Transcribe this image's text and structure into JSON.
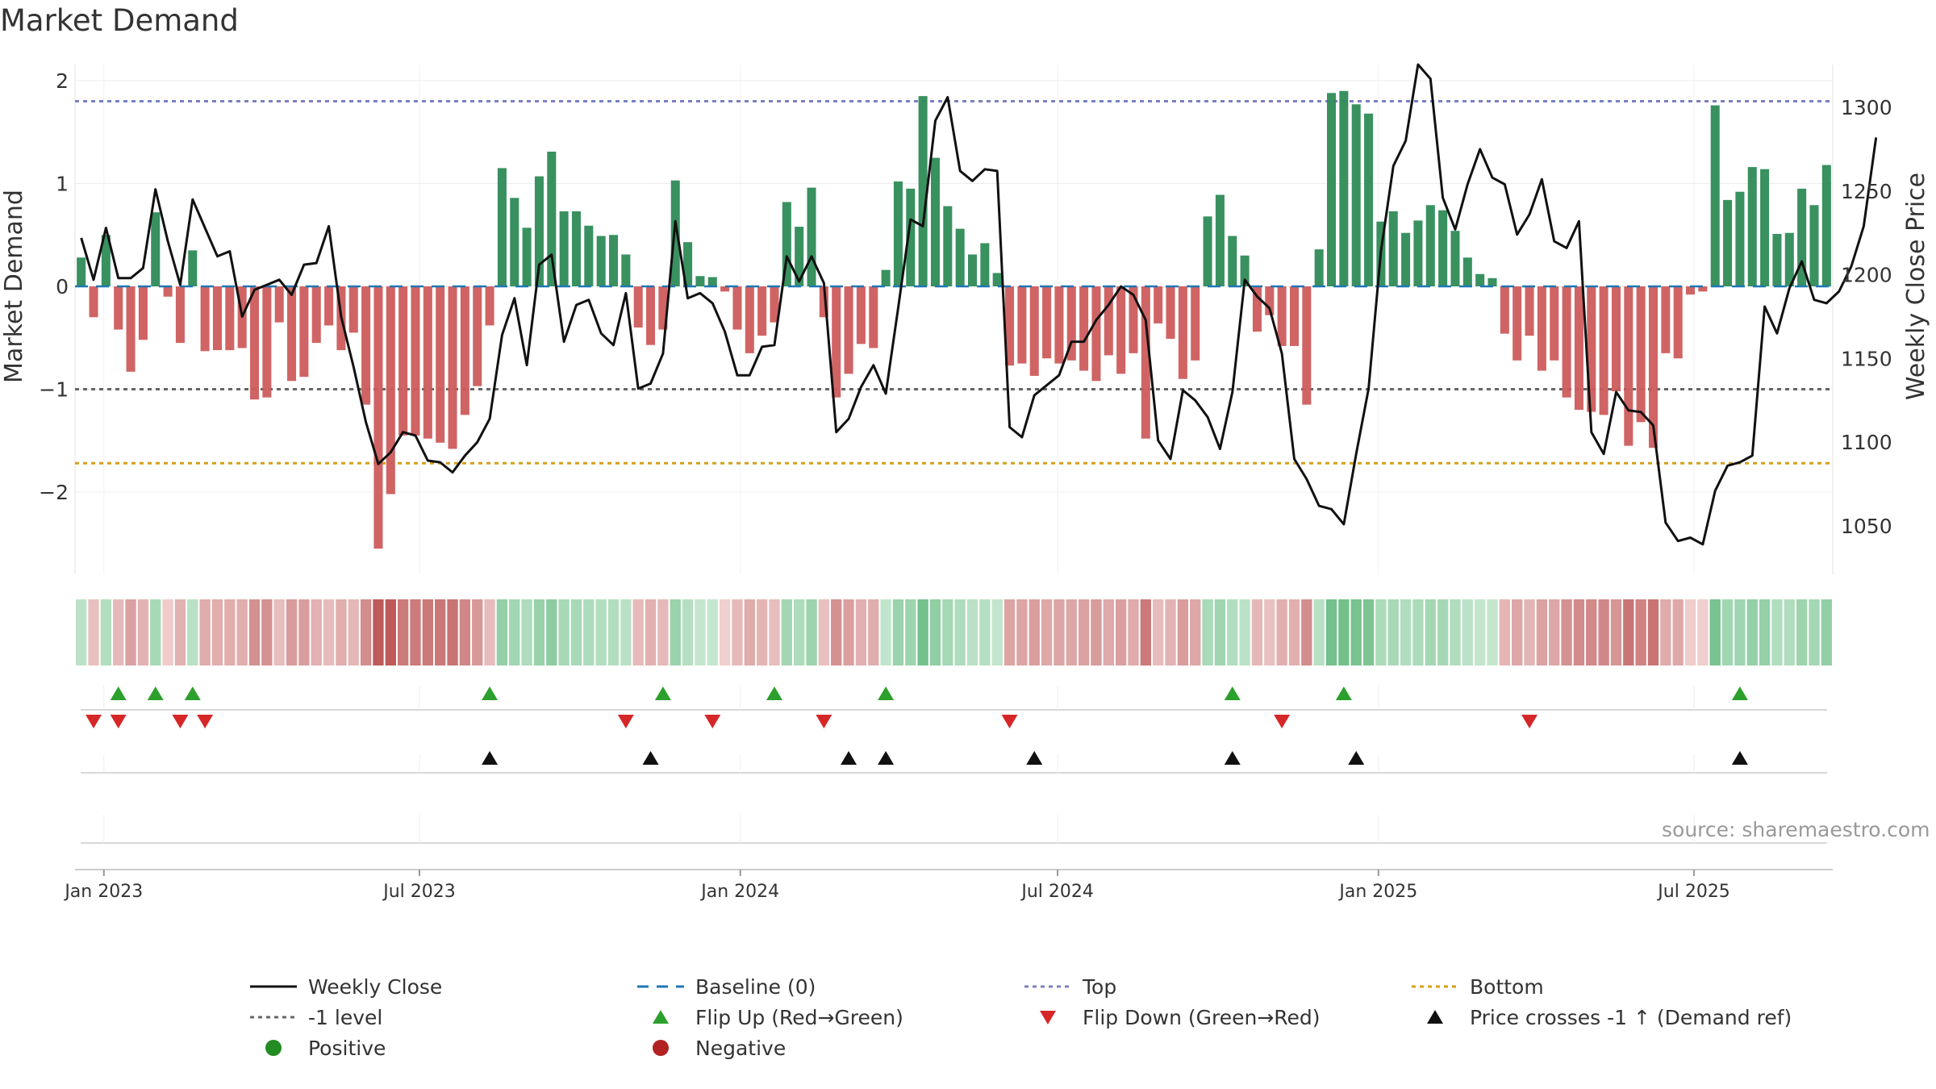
{
  "title": "Market Demand",
  "source_note": "source: sharemaestro.com",
  "colors": {
    "positive_bar": "#2e8b57",
    "negative_bar": "#cd5c5c",
    "close_line": "#111111",
    "baseline": "#1f77b4",
    "top_line": "#7b7fc4",
    "level_line": "#666666",
    "bottom_line": "#d4a017",
    "flip_up": "#2ca02c",
    "flip_down": "#d62728",
    "cross_marker": "#111111"
  },
  "chart_data": {
    "type": "bar",
    "title": "Market Demand",
    "ylabel": "Market Demand",
    "y2label": "Weekly Close Price",
    "ylim": [
      -2.8,
      2.15
    ],
    "y2lim": [
      1030,
      1315
    ],
    "yticks": [
      2,
      1,
      0,
      -1,
      -2
    ],
    "ytick_labels": [
      "2",
      "1",
      "0",
      "−1",
      "−2"
    ],
    "y2ticks": [
      1300,
      1250,
      1200,
      1150,
      1100,
      1050
    ],
    "y2tick_labels": [
      "1300",
      "1250",
      "1200",
      "1150",
      "1100",
      "1050"
    ],
    "reference_lines": {
      "top": 1.8,
      "level": -1,
      "bottom": -1.72,
      "baseline": 0
    },
    "x_start": "2022-12-19",
    "x_end": "2025-09-15",
    "xticks": [
      "2023-01-01",
      "2023-07-01",
      "2024-01-01",
      "2024-07-01",
      "2025-01-01",
      "2025-07-01"
    ],
    "xtick_labels": [
      "Jan 2023",
      "Jul 2023",
      "Jan 2024",
      "Jul 2024",
      "Jan 2025",
      "Jul 2025"
    ],
    "demand": [
      0.28,
      -0.3,
      0.5,
      -0.42,
      -0.83,
      -0.52,
      0.72,
      -0.1,
      -0.55,
      0.35,
      -0.63,
      -0.62,
      -0.62,
      -0.6,
      -1.1,
      -1.08,
      -0.35,
      -0.92,
      -0.88,
      -0.55,
      -0.38,
      -0.62,
      -0.45,
      -1.15,
      -2.55,
      -2.02,
      -1.45,
      -1.45,
      -1.48,
      -1.52,
      -1.58,
      -1.25,
      -0.97,
      -0.38,
      1.15,
      0.86,
      0.57,
      1.07,
      1.31,
      0.73,
      0.73,
      0.59,
      0.49,
      0.5,
      0.31,
      -0.4,
      -0.57,
      -0.42,
      1.03,
      0.43,
      0.1,
      0.09,
      -0.05,
      -0.42,
      -0.65,
      -0.48,
      -0.35,
      0.82,
      0.58,
      0.96,
      -0.3,
      -1.08,
      -0.85,
      -0.56,
      -0.6,
      0.16,
      1.02,
      0.95,
      1.85,
      1.25,
      0.78,
      0.56,
      0.31,
      0.42,
      0.13,
      -0.77,
      -0.75,
      -0.87,
      -0.7,
      -0.75,
      -0.72,
      -0.82,
      -0.92,
      -0.67,
      -0.85,
      -0.65,
      -1.48,
      -0.36,
      -0.51,
      -0.9,
      -0.72,
      0.68,
      0.89,
      0.49,
      0.3,
      -0.44,
      -0.28,
      -0.58,
      -0.58,
      -1.15,
      0.36,
      1.88,
      1.9,
      1.77,
      1.68,
      0.63,
      0.73,
      0.52,
      0.64,
      0.79,
      0.74,
      0.54,
      0.28,
      0.12,
      0.08,
      -0.46,
      -0.72,
      -0.48,
      -0.82,
      -0.72,
      -1.08,
      -1.2,
      -1.22,
      -1.25,
      -1.02,
      -1.55,
      -1.32,
      -1.57,
      -0.65,
      -0.7,
      -0.08,
      -0.05,
      1.76,
      0.84,
      0.92,
      1.16,
      1.14,
      0.51,
      0.52,
      0.95,
      0.79,
      1.18
    ],
    "close": [
      1222,
      1197,
      1228,
      1198,
      1198,
      1204,
      1251,
      1220,
      1194,
      1245,
      1228,
      1211,
      1214,
      1175,
      1191,
      1194,
      1197,
      1188,
      1206,
      1207,
      1229,
      1175,
      1145,
      1112,
      1087,
      1094,
      1106,
      1104,
      1089,
      1088,
      1082,
      1092,
      1100,
      1114,
      1164,
      1186,
      1146,
      1206,
      1212,
      1160,
      1182,
      1185,
      1165,
      1158,
      1189,
      1132,
      1135,
      1153,
      1232,
      1186,
      1189,
      1183,
      1166,
      1140,
      1140,
      1157,
      1158,
      1211,
      1196,
      1211,
      1195,
      1106,
      1114,
      1133,
      1146,
      1129,
      1180,
      1233,
      1229,
      1292,
      1306,
      1262,
      1256,
      1263,
      1262,
      1109,
      1103,
      1128,
      1134,
      1140,
      1160,
      1160,
      1173,
      1182,
      1193,
      1188,
      1173,
      1101,
      1090,
      1131,
      1125,
      1115,
      1096,
      1130,
      1197,
      1187,
      1180,
      1153,
      1090,
      1078,
      1062,
      1060,
      1051,
      1093,
      1132,
      1214,
      1265,
      1280,
      1334,
      1317,
      1246,
      1227,
      1254,
      1275,
      1258,
      1254,
      1224,
      1236,
      1257,
      1220,
      1216,
      1232,
      1106,
      1093,
      1130,
      1119,
      1118,
      1110,
      1052,
      1041,
      1043,
      1039,
      1071,
      1086,
      1088,
      1092,
      1181,
      1165,
      1192,
      1208,
      1185,
      1183,
      1190,
      1205,
      1229,
      1282
    ]
  },
  "markers": {
    "flip_up": [
      3,
      6,
      9,
      33,
      47,
      56,
      65,
      93,
      102,
      134
    ],
    "flip_down": [
      1,
      3,
      8,
      10,
      44,
      51,
      60,
      75,
      97,
      117
    ],
    "price_cross": [
      33,
      46,
      62,
      65,
      77,
      93,
      103,
      134
    ]
  },
  "legend": [
    {
      "label": "Weekly Close",
      "symbol": "line-solid-black"
    },
    {
      "label": "Baseline (0)",
      "symbol": "line-dash-blue"
    },
    {
      "label": "Top",
      "symbol": "line-dot-purple"
    },
    {
      "label": "Bottom",
      "symbol": "line-dot-yellow"
    },
    {
      "label": "-1 level",
      "symbol": "line-dot-gray"
    },
    {
      "label": "Flip Up (Red→Green)",
      "symbol": "triangle-up-green"
    },
    {
      "label": "Flip Down (Green→Red)",
      "symbol": "triangle-down-red"
    },
    {
      "label": "Price crosses -1 ↑ (Demand ref)",
      "symbol": "triangle-up-black"
    },
    {
      "label": "Positive",
      "symbol": "circle-green"
    },
    {
      "label": "Negative",
      "symbol": "circle-red"
    }
  ]
}
